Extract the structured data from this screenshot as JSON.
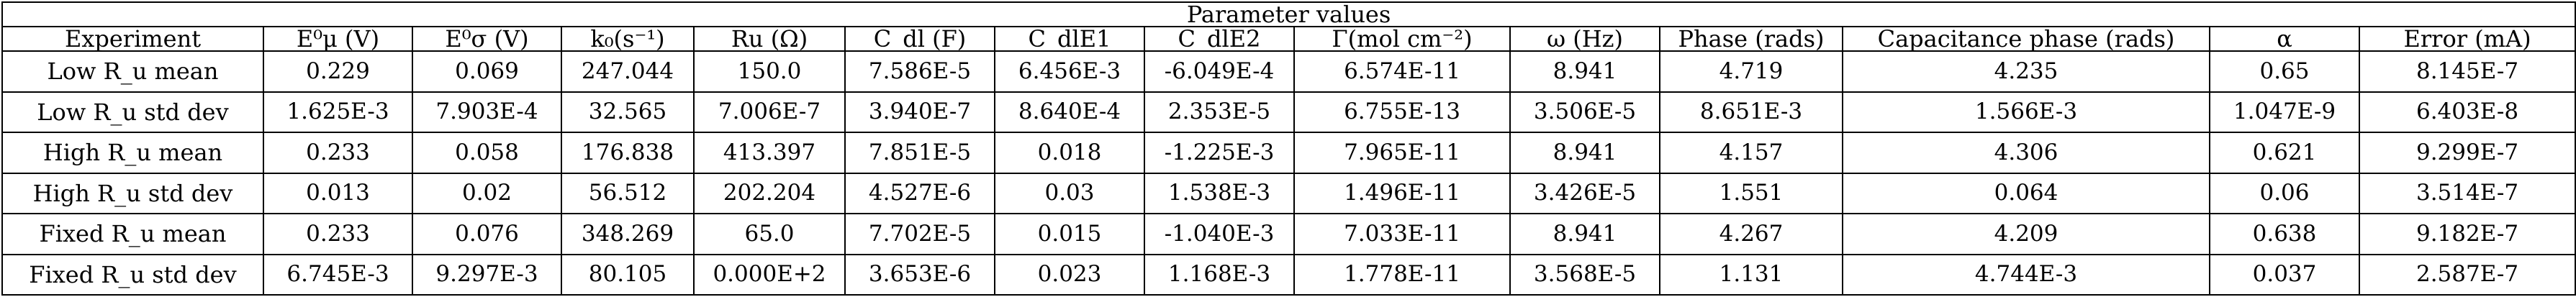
{
  "table": {
    "title": "Parameter values",
    "columns": [
      "Experiment",
      "E⁰μ (V)",
      "E⁰σ (V)",
      "k₀(s⁻¹)",
      "Ru (Ω)",
      "C_dl (F)",
      "C_dlE1",
      "C_dlE2",
      "Γ(mol cm⁻²)",
      "ω (Hz)",
      "Phase (rads)",
      "Capacitance phase (rads)",
      "α",
      "Error (mA)"
    ],
    "rows": [
      {
        "label": "Low R_u mean",
        "cells": [
          "0.229",
          "0.069",
          "247.044",
          "150.0",
          "7.586E-5",
          "6.456E-3",
          "-6.049E-4",
          "6.574E-11",
          "8.941",
          "4.719",
          "4.235",
          "0.65",
          "8.145E-7"
        ]
      },
      {
        "label": "Low R_u std dev",
        "cells": [
          "1.625E-3",
          "7.903E-4",
          "32.565",
          "7.006E-7",
          "3.940E-7",
          "8.640E-4",
          "2.353E-5",
          "6.755E-13",
          "3.506E-5",
          "8.651E-3",
          "1.566E-3",
          "1.047E-9",
          "6.403E-8"
        ]
      },
      {
        "label": "High R_u mean",
        "cells": [
          "0.233",
          "0.058",
          "176.838",
          "413.397",
          "7.851E-5",
          "0.018",
          "-1.225E-3",
          "7.965E-11",
          "8.941",
          "4.157",
          "4.306",
          "0.621",
          "9.299E-7"
        ]
      },
      {
        "label": "High R_u std dev",
        "cells": [
          "0.013",
          "0.02",
          "56.512",
          "202.204",
          "4.527E-6",
          "0.03",
          "1.538E-3",
          "1.496E-11",
          "3.426E-5",
          "1.551",
          "0.064",
          "0.06",
          "3.514E-7"
        ]
      },
      {
        "label": "Fixed R_u mean",
        "cells": [
          "0.233",
          "0.076",
          "348.269",
          "65.0",
          "7.702E-5",
          "0.015",
          "-1.040E-3",
          "7.033E-11",
          "8.941",
          "4.267",
          "4.209",
          "0.638",
          "9.182E-7"
        ]
      },
      {
        "label": "Fixed R_u std dev",
        "cells": [
          "6.745E-3",
          "9.297E-3",
          "80.105",
          "0.000E+2",
          "3.653E-6",
          "0.023",
          "1.168E-3",
          "1.778E-11",
          "3.568E-5",
          "1.131",
          "4.744E-3",
          "0.037",
          "2.587E-7"
        ]
      }
    ]
  }
}
